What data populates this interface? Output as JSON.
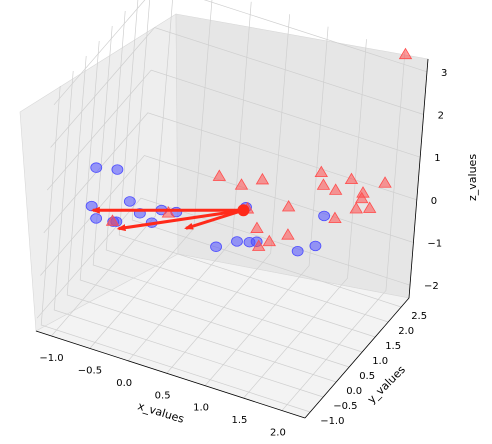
{
  "chart_data": {
    "type": "scatter3d",
    "axes": {
      "xlabel": "x_values",
      "ylabel": "y_values",
      "zlabel": "z_values",
      "xlim": [
        -1.2,
        2.3
      ],
      "ylim": [
        -1.2,
        2.8
      ],
      "zlim": [
        -2.3,
        3.3
      ],
      "xticks": [
        -1.0,
        -0.5,
        0.0,
        0.5,
        1.0,
        1.5,
        2.0
      ],
      "yticks": [
        -1.0,
        -0.5,
        0.0,
        0.5,
        1.0,
        1.5,
        2.0,
        2.5
      ],
      "zticks": [
        -2,
        -1,
        0,
        1,
        2,
        3
      ],
      "xtick_labels": [
        "−1.0",
        "−0.5",
        "0.0",
        "0.5",
        "1.0",
        "1.5",
        "2.0"
      ],
      "ytick_labels": [
        "−1.0",
        "−0.5",
        "0.0",
        "0.5",
        "1.0",
        "1.5",
        "2.0",
        "2.5"
      ],
      "ztick_labels": [
        "−2",
        "−1",
        "0",
        "1",
        "2",
        "3"
      ],
      "grid": true
    },
    "series": [
      {
        "marker": "circle",
        "color": "#4d4dff",
        "points": [
          [
            -0.9,
            -0.2,
            1.0
          ],
          [
            -0.6,
            -0.3,
            1.2
          ],
          [
            -0.95,
            -0.1,
            0.0
          ],
          [
            -0.5,
            0.0,
            0.3
          ],
          [
            -1.0,
            0.3,
            -0.6
          ],
          [
            -0.8,
            0.5,
            -0.7
          ],
          [
            -0.6,
            0.8,
            -0.6
          ],
          [
            -0.9,
            0.7,
            -0.9
          ],
          [
            -0.5,
            1.0,
            -0.9
          ],
          [
            0.0,
            -0.3,
            0.6
          ],
          [
            0.1,
            0.0,
            0.4
          ],
          [
            0.4,
            0.8,
            -0.8
          ],
          [
            0.6,
            1.0,
            -0.7
          ],
          [
            0.7,
            1.2,
            -0.8
          ],
          [
            0.7,
            1.5,
            -1.0
          ],
          [
            1.2,
            1.6,
            -1.0
          ],
          [
            1.3,
            2.0,
            -1.1
          ],
          [
            1.5,
            1.6,
            0.0
          ],
          [
            0.8,
            0.6,
            0.5
          ]
        ]
      },
      {
        "marker": "triangle",
        "color": "#ff4d4d",
        "points": [
          [
            0.3,
            -1.0,
            1.2
          ],
          [
            0.9,
            0.0,
            1.5
          ],
          [
            0.7,
            -0.3,
            1.8
          ],
          [
            1.1,
            0.2,
            1.6
          ],
          [
            1.0,
            0.0,
            1.0
          ],
          [
            1.2,
            -0.2,
            0.8
          ],
          [
            1.4,
            0.4,
            1.0
          ],
          [
            1.6,
            1.0,
            1.5
          ],
          [
            1.7,
            0.8,
            1.4
          ],
          [
            1.9,
            1.3,
            1.3
          ],
          [
            1.8,
            1.0,
            1.2
          ],
          [
            2.0,
            1.5,
            0.9
          ],
          [
            1.9,
            1.6,
            0.4
          ],
          [
            1.7,
            1.4,
            0.2
          ],
          [
            1.9,
            1.8,
            0.5
          ],
          [
            2.1,
            1.5,
            0.6
          ],
          [
            2.0,
            2.4,
            0.5
          ],
          [
            1.3,
            0.8,
            0.0
          ],
          [
            1.1,
            0.7,
            -0.2
          ],
          [
            1.0,
            0.6,
            -0.3
          ],
          [
            2.1,
            2.5,
            3.5
          ],
          [
            -0.4,
            -1.0,
            0.6
          ]
        ]
      }
    ],
    "vectors": {
      "color": "#ff2a1a",
      "origin": [
        0.8,
        0.5,
        0.5
      ],
      "tips": [
        [
          -0.9,
          -0.2,
          0.0
        ],
        [
          -0.75,
          0.45,
          -0.8
        ],
        [
          0.0,
          0.8,
          -0.6
        ]
      ]
    }
  }
}
